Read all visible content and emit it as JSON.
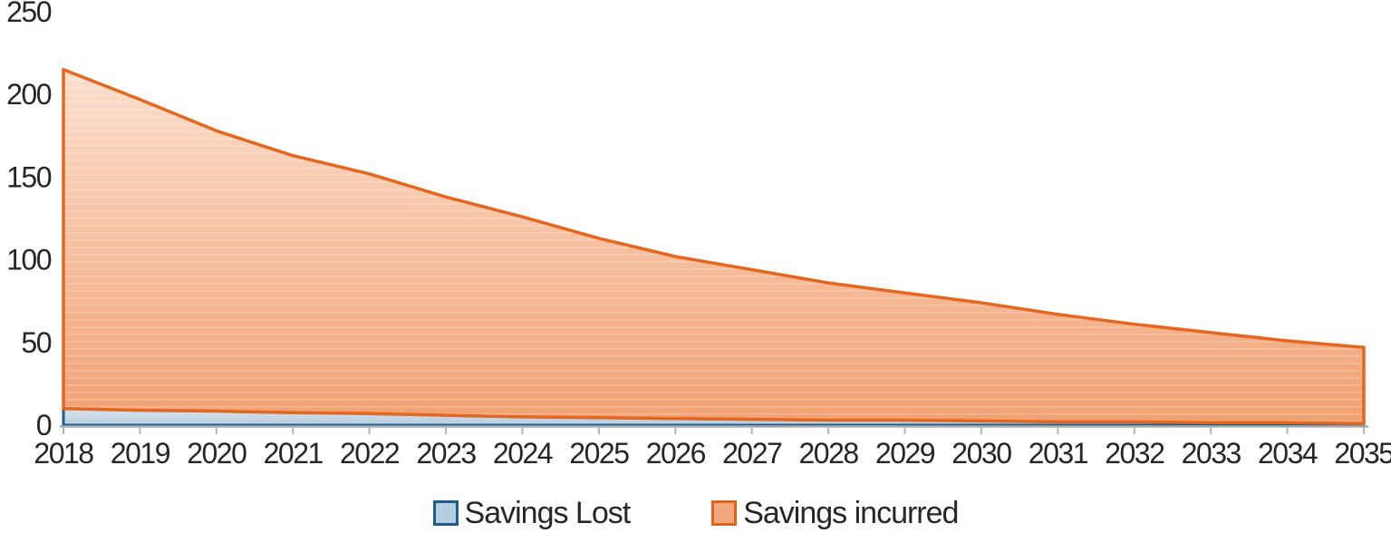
{
  "chart_data": {
    "type": "area",
    "stacked": true,
    "title": "",
    "xlabel": "",
    "ylabel": "",
    "categories": [
      "2018",
      "2019",
      "2020",
      "2021",
      "2022",
      "2023",
      "2024",
      "2025",
      "2026",
      "2027",
      "2028",
      "2029",
      "2030",
      "2031",
      "2032",
      "2033",
      "2034",
      "2035"
    ],
    "series": [
      {
        "name": "Savings Lost",
        "values": [
          10,
          9,
          8.5,
          7.5,
          7,
          6,
          5,
          4.5,
          4,
          3.5,
          3,
          3,
          2.5,
          2,
          2,
          1.5,
          1.5,
          1
        ],
        "line_color": "#1E5B8C",
        "fill_top": "#D6E2EC",
        "fill_bottom": "#B7CDDE",
        "legend_fill": "#B5CEE0",
        "legend_border": "#1F5C8B"
      },
      {
        "name": "Savings incurred",
        "values": [
          205,
          188,
          169.5,
          155.5,
          145,
          132,
          121,
          108.5,
          98,
          90.5,
          83,
          77,
          71.5,
          65,
          59,
          54.5,
          49.5,
          46
        ],
        "line_color": "#E5661E",
        "fill_top": "#FCDFCE",
        "fill_bottom": "#F1A173",
        "legend_fill": "#F4A87E",
        "legend_border": "#E2611B"
      }
    ],
    "stack_totals": [
      215,
      197,
      178,
      163,
      152,
      138,
      126,
      113,
      102,
      94,
      86,
      80,
      74,
      67,
      61,
      56,
      51,
      47
    ],
    "ylim": [
      0,
      250
    ],
    "y_ticks": [
      0,
      50,
      100,
      150,
      200,
      250
    ],
    "grid": false,
    "legend_position": "bottom",
    "axis_color": "#ABABAB",
    "tick_color": "#B5B5B5",
    "text_color": "#262626"
  }
}
